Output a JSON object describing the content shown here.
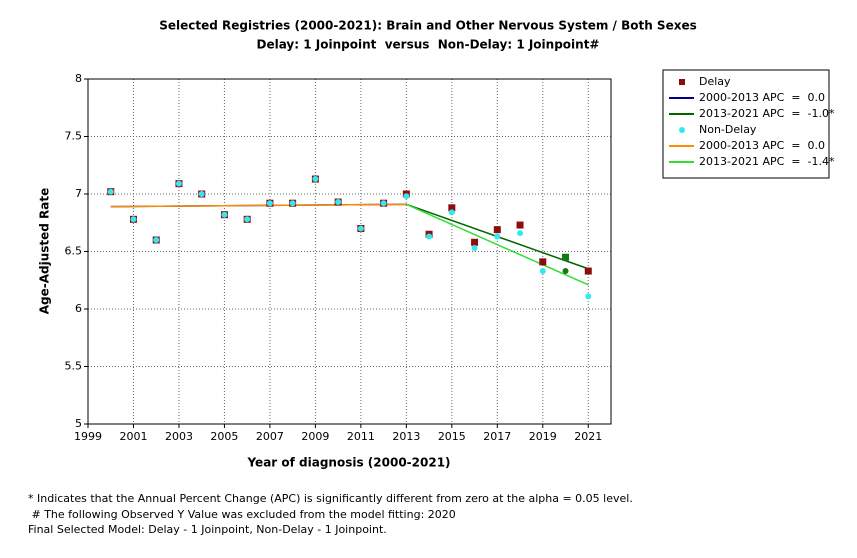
{
  "chart_data": {
    "type": "scatter",
    "title": "Selected Registries (2000-2021): Brain and Other Nervous System / Both Sexes",
    "subtitle": "Delay: 1 Joinpoint  versus  Non-Delay: 1 Joinpoint#",
    "xlabel": "Year of diagnosis (2000-2021)",
    "ylabel": "Age-Adjusted Rate",
    "xlim": [
      1999,
      2022
    ],
    "ylim": [
      5,
      8
    ],
    "xticks": [
      1999,
      2001,
      2003,
      2005,
      2007,
      2009,
      2011,
      2013,
      2015,
      2017,
      2019,
      2021
    ],
    "yticks": [
      5,
      5.5,
      6,
      6.5,
      7,
      7.5,
      8
    ],
    "grid": true,
    "legend": "outside-right",
    "excluded_x": 2020,
    "excluded_color": "#127a12",
    "points": [
      {
        "name": "Delay",
        "color": "#8b0d0d",
        "marker": "square",
        "x": [
          2000,
          2001,
          2002,
          2003,
          2004,
          2005,
          2006,
          2007,
          2008,
          2009,
          2010,
          2011,
          2012,
          2013,
          2014,
          2015,
          2016,
          2017,
          2018,
          2019,
          2020,
          2021
        ],
        "values": [
          7.02,
          6.78,
          6.6,
          7.09,
          7.0,
          6.82,
          6.78,
          6.92,
          6.92,
          7.13,
          6.93,
          6.7,
          6.92,
          7.0,
          6.65,
          6.88,
          6.58,
          6.69,
          6.73,
          6.41,
          6.45,
          6.33
        ]
      },
      {
        "name": "Non-Delay",
        "color": "#33e8f0",
        "marker": "circle",
        "x": [
          2000,
          2001,
          2002,
          2003,
          2004,
          2005,
          2006,
          2007,
          2008,
          2009,
          2010,
          2011,
          2012,
          2013,
          2014,
          2015,
          2016,
          2017,
          2018,
          2019,
          2020,
          2021
        ],
        "values": [
          7.02,
          6.78,
          6.6,
          7.09,
          7.0,
          6.82,
          6.78,
          6.92,
          6.92,
          7.13,
          6.93,
          6.7,
          6.92,
          6.98,
          6.63,
          6.84,
          6.53,
          6.63,
          6.66,
          6.33,
          6.33,
          6.11
        ]
      }
    ],
    "fits": [
      {
        "name": "2000-2013 APC  =  0.0",
        "color": "#00008b",
        "x": [
          2000,
          2013
        ],
        "values": [
          6.89,
          6.91
        ]
      },
      {
        "name": "2013-2021 APC  =  -1.0*",
        "color": "#006400",
        "x": [
          2013,
          2021
        ],
        "values": [
          6.91,
          6.35
        ]
      },
      {
        "name": "2000-2013 APC  =  0.0",
        "color": "#ff8c00",
        "x": [
          2000,
          2013
        ],
        "values": [
          6.89,
          6.91
        ]
      },
      {
        "name": "2013-2021 APC  =  -1.4*",
        "color": "#33dd33",
        "x": [
          2013,
          2021
        ],
        "values": [
          6.91,
          6.21
        ]
      }
    ]
  },
  "footnotes": [
    "* Indicates that the Annual Percent Change (APC) is significantly different from zero at the alpha = 0.05 level.",
    " # The following Observed Y Value was excluded from the model fitting: 2020",
    "Final Selected Model: Delay - 1 Joinpoint, Non-Delay - 1 Joinpoint."
  ]
}
